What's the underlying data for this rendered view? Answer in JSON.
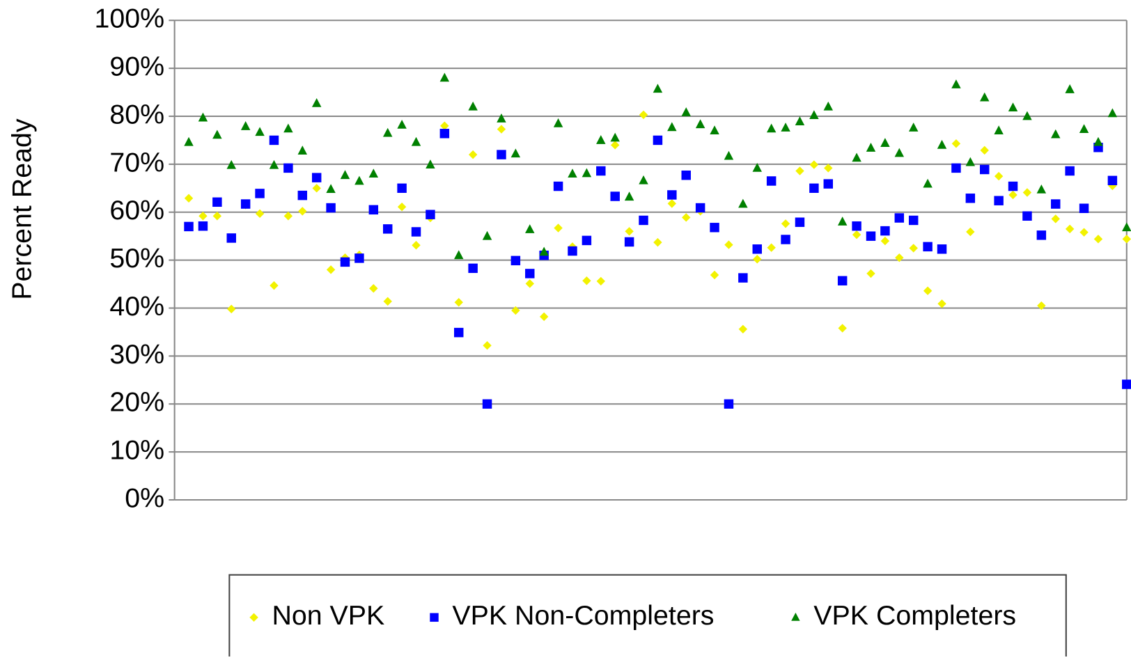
{
  "chart_data": {
    "type": "scatter",
    "y_label": "Percent Ready",
    "x": [
      1,
      2,
      3,
      4,
      5,
      6,
      7,
      8,
      9,
      10,
      11,
      12,
      13,
      14,
      15,
      16,
      17,
      18,
      19,
      20,
      21,
      22,
      23,
      24,
      25,
      26,
      27,
      28,
      29,
      30,
      31,
      32,
      33,
      34,
      35,
      36,
      37,
      38,
      39,
      40,
      41,
      42,
      43,
      44,
      45,
      46,
      47,
      48,
      49,
      50,
      51,
      52,
      53,
      54,
      55,
      56,
      57,
      58,
      59,
      60,
      61,
      62,
      63,
      64,
      65,
      66,
      67
    ],
    "xlim": [
      0,
      67
    ],
    "ylim": [
      0,
      100
    ],
    "yticks": [
      {
        "value": 0,
        "label": "0%"
      },
      {
        "value": 10,
        "label": "10%"
      },
      {
        "value": 20,
        "label": "20%"
      },
      {
        "value": 30,
        "label": "30%"
      },
      {
        "value": 40,
        "label": "40%"
      },
      {
        "value": 50,
        "label": "50%"
      },
      {
        "value": 60,
        "label": "60%"
      },
      {
        "value": 70,
        "label": "70%"
      },
      {
        "value": 80,
        "label": "80%"
      },
      {
        "value": 90,
        "label": "90%"
      },
      {
        "value": 100,
        "label": "100%"
      }
    ],
    "grid": true,
    "legend": "bottom",
    "series": [
      {
        "name": "Non VPK",
        "color": "#f2f200",
        "marker": "diamond",
        "values": [
          62.9,
          59.2,
          59.2,
          39.8,
          61.5,
          59.7,
          44.7,
          59.2,
          60.2,
          65,
          48,
          50.5,
          51.1,
          44.1,
          41.4,
          61.1,
          53.1,
          58.8,
          78,
          41.2,
          72,
          32.2,
          77.3,
          39.5,
          45.1,
          38.2,
          56.7,
          52.8,
          45.7,
          45.6,
          74,
          56,
          80.3,
          53.7,
          61.8,
          58.9,
          60.2,
          46.9,
          53.2,
          35.6,
          50.2,
          52.6,
          57.6,
          68.6,
          69.9,
          69.2,
          35.8,
          55.3,
          47.2,
          54,
          50.5,
          52.5,
          43.6,
          40.9,
          74.3,
          55.9,
          72.9,
          67.5,
          63.6,
          64.1,
          40.5,
          58.6,
          56.5,
          55.8,
          54.4,
          65.5,
          54.4
        ]
      },
      {
        "name": "VPK Non-Completers",
        "color": "#0000ff",
        "marker": "square",
        "values": [
          57,
          57.1,
          62.1,
          54.6,
          61.7,
          63.9,
          75,
          69.2,
          63.5,
          67.2,
          60.9,
          49.6,
          50.4,
          60.5,
          56.5,
          65,
          55.9,
          59.5,
          76.4,
          34.9,
          48.3,
          20,
          72,
          49.9,
          47.2,
          51,
          65.4,
          51.9,
          54.1,
          68.6,
          63.3,
          53.8,
          58.3,
          75,
          63.6,
          67.7,
          60.9,
          56.8,
          20,
          46.3,
          52.3,
          66.5,
          54.3,
          57.9,
          65,
          65.9,
          45.7,
          57.1,
          55,
          56.1,
          58.8,
          58.3,
          52.8,
          52.3,
          69.2,
          62.9,
          68.9,
          62.4,
          65.4,
          59.2,
          55.2,
          61.7,
          68.6,
          60.8,
          73.5,
          66.6,
          24.1
        ]
      },
      {
        "name": "VPK Completers",
        "color": "#008000",
        "marker": "triangle",
        "values": [
          74.6,
          79.7,
          76.1,
          69.8,
          77.9,
          76.7,
          69.8,
          77.4,
          72.8,
          82.7,
          64.8,
          67.7,
          66.5,
          68,
          76.5,
          78.2,
          74.6,
          69.9,
          88,
          51,
          82,
          55,
          79.5,
          72.2,
          56.4,
          51.7,
          78.5,
          68,
          68.1,
          75,
          75.5,
          63.2,
          66.6,
          85.7,
          77.7,
          80.8,
          78.3,
          77,
          71.7,
          61.7,
          69.2,
          77.4,
          77.6,
          78.9,
          80.2,
          82,
          58,
          71.3,
          73.4,
          74.4,
          72.3,
          77.6,
          65.9,
          74,
          86.6,
          70.4,
          83.9,
          77,
          81.8,
          80,
          64.7,
          76.2,
          85.6,
          77.3,
          74.6,
          80.6,
          56.8
        ]
      }
    ]
  }
}
